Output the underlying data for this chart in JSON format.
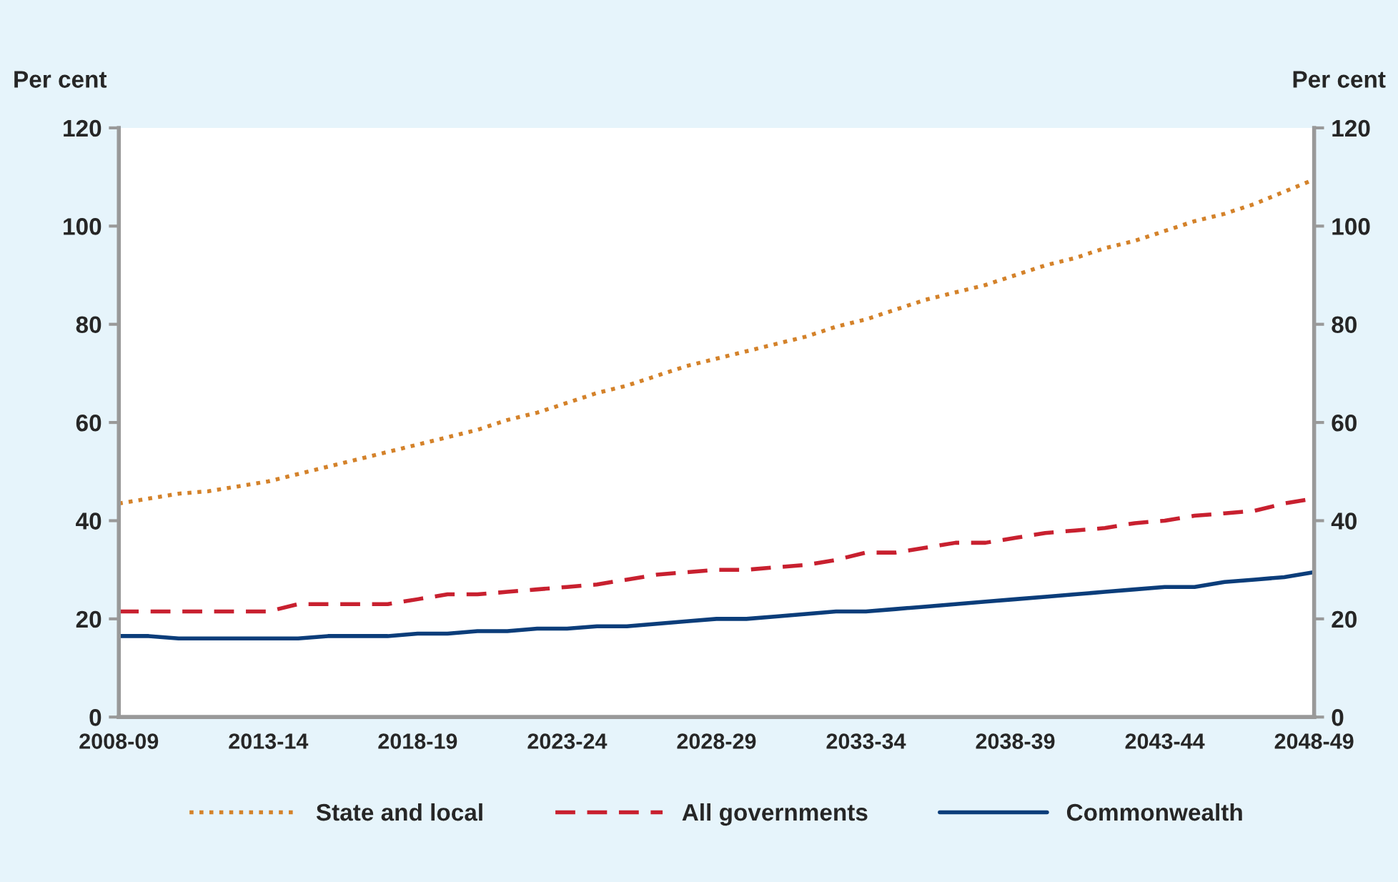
{
  "chart_data": {
    "type": "line",
    "ylabel": "Per cent",
    "y2label": "Per cent",
    "categories": [
      "2008-09",
      null,
      null,
      null,
      null,
      "2013-14",
      null,
      null,
      null,
      null,
      "2018-19",
      null,
      null,
      null,
      null,
      "2023-24",
      null,
      null,
      null,
      null,
      "2028-29",
      null,
      null,
      null,
      null,
      "2033-34",
      null,
      null,
      null,
      null,
      "2038-39",
      null,
      null,
      null,
      null,
      "2043-44",
      null,
      null,
      null,
      null,
      "2048-49"
    ],
    "series": [
      {
        "name": "State and local",
        "color": "#d4822a",
        "line_style": "dotted",
        "values": [
          43.5,
          44.5,
          45.5,
          46,
          47,
          48,
          49.5,
          51,
          52.5,
          54,
          55.5,
          57,
          58.5,
          60.5,
          62,
          64,
          66,
          67.5,
          69.5,
          71.5,
          73,
          74.5,
          76,
          77.5,
          79.5,
          81,
          83,
          85,
          86.5,
          88,
          90,
          92,
          93.5,
          95.5,
          97,
          99,
          101,
          102.5,
          104.5,
          107,
          109.5
        ]
      },
      {
        "name": "All governments",
        "color": "#c8202f",
        "line_style": "dashed",
        "values": [
          21.5,
          21.5,
          21.5,
          21.5,
          21.5,
          21.5,
          23,
          23,
          23,
          23,
          24,
          25,
          25,
          25.5,
          26,
          26.5,
          27,
          28,
          29,
          29.5,
          30,
          30,
          30.5,
          31,
          32,
          33.5,
          33.5,
          34.5,
          35.5,
          35.5,
          36.5,
          37.5,
          38,
          38.5,
          39.5,
          40,
          41,
          41.5,
          42,
          43.5,
          44.5
        ]
      },
      {
        "name": "Commonwealth",
        "color": "#0b3d7a",
        "line_style": "solid",
        "values": [
          16.5,
          16.5,
          16,
          16,
          16,
          16,
          16,
          16.5,
          16.5,
          16.5,
          17,
          17,
          17.5,
          17.5,
          18,
          18,
          18.5,
          18.5,
          19,
          19.5,
          20,
          20,
          20.5,
          21,
          21.5,
          21.5,
          22,
          22.5,
          23,
          23.5,
          24,
          24.5,
          25,
          25.5,
          26,
          26.5,
          26.5,
          27.5,
          28,
          28.5,
          29.5
        ]
      }
    ],
    "ylim": [
      0,
      120
    ],
    "yticks": [
      0,
      20,
      40,
      60,
      80,
      100,
      120
    ],
    "y2lim": [
      0,
      120
    ],
    "y2ticks": [
      0,
      20,
      40,
      60,
      80,
      100,
      120
    ],
    "legend": "bottom"
  }
}
